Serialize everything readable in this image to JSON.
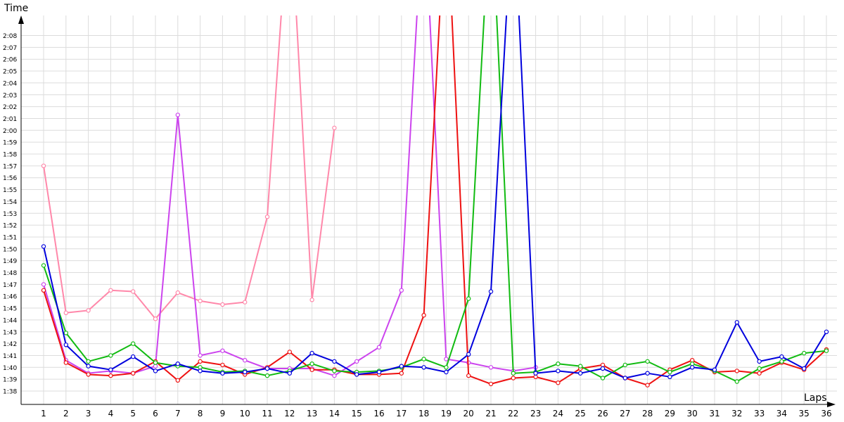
{
  "chart_data": {
    "type": "line",
    "title": "",
    "xlabel": "Laps",
    "ylabel": "Time",
    "xlim": [
      0,
      36.5
    ],
    "ylim": [
      97.5,
      130
    ],
    "grid": true,
    "x_ticks": [
      1,
      2,
      3,
      4,
      5,
      6,
      7,
      8,
      9,
      10,
      11,
      12,
      13,
      14,
      15,
      16,
      17,
      18,
      19,
      20,
      21,
      22,
      23,
      24,
      25,
      26,
      27,
      28,
      29,
      30,
      31,
      32,
      33,
      34,
      35,
      36
    ],
    "y_ticks": [
      {
        "v": 98,
        "label": "1:38"
      },
      {
        "v": 99,
        "label": "1:39"
      },
      {
        "v": 100,
        "label": "1:40"
      },
      {
        "v": 101,
        "label": "1:41"
      },
      {
        "v": 102,
        "label": "1:42"
      },
      {
        "v": 103,
        "label": "1:43"
      },
      {
        "v": 104,
        "label": "1:44"
      },
      {
        "v": 105,
        "label": "1:45"
      },
      {
        "v": 106,
        "label": "1:46"
      },
      {
        "v": 107,
        "label": "1:47"
      },
      {
        "v": 108,
        "label": "1:48"
      },
      {
        "v": 109,
        "label": "1:49"
      },
      {
        "v": 110,
        "label": "1:50"
      },
      {
        "v": 111,
        "label": "1:51"
      },
      {
        "v": 112,
        "label": "1:52"
      },
      {
        "v": 113,
        "label": "1:53"
      },
      {
        "v": 114,
        "label": "1:54"
      },
      {
        "v": 115,
        "label": "1:55"
      },
      {
        "v": 116,
        "label": "1:56"
      },
      {
        "v": 117,
        "label": "1:57"
      },
      {
        "v": 118,
        "label": "1:58"
      },
      {
        "v": 119,
        "label": "1:59"
      },
      {
        "v": 120,
        "label": "2:00"
      },
      {
        "v": 121,
        "label": "2:01"
      },
      {
        "v": 122,
        "label": "2:02"
      },
      {
        "v": 123,
        "label": "2:03"
      },
      {
        "v": 124,
        "label": "2:04"
      },
      {
        "v": 125,
        "label": "2:05"
      },
      {
        "v": 126,
        "label": "2:06"
      },
      {
        "v": 127,
        "label": "2:07"
      },
      {
        "v": 128,
        "label": "2:08"
      }
    ],
    "series": [
      {
        "color": "#ff88aa",
        "points": [
          [
            1,
            117.0
          ],
          [
            2,
            104.6
          ],
          [
            3,
            104.8
          ],
          [
            4,
            106.5
          ],
          [
            5,
            106.4
          ],
          [
            6,
            104.1
          ],
          [
            7,
            106.3
          ],
          [
            8,
            105.6
          ],
          [
            9,
            105.3
          ],
          [
            10,
            105.5
          ],
          [
            11,
            112.7
          ],
          [
            12,
            140
          ],
          [
            13,
            105.7
          ],
          [
            14,
            120.2
          ]
        ],
        "gaps_after": [
          14
        ]
      },
      {
        "color": "#cc44ee",
        "points": [
          [
            1,
            107.0
          ],
          [
            2,
            100.6
          ],
          [
            3,
            99.5
          ],
          [
            4,
            99.7
          ],
          [
            5,
            99.5
          ],
          [
            6,
            100.1
          ],
          [
            7,
            121.3
          ],
          [
            8,
            101.0
          ],
          [
            9,
            101.4
          ],
          [
            10,
            100.6
          ],
          [
            11,
            99.9
          ],
          [
            12,
            99.9
          ],
          [
            13,
            99.9
          ],
          [
            14,
            99.3
          ],
          [
            15,
            100.5
          ],
          [
            16,
            101.7
          ],
          [
            17,
            106.5
          ],
          [
            18,
            140
          ],
          [
            19,
            100.7
          ],
          [
            20,
            100.4
          ],
          [
            21,
            100.0
          ],
          [
            22,
            99.7
          ],
          [
            23,
            100.0
          ]
        ]
      },
      {
        "color": "#ee1111",
        "points": [
          [
            1,
            106.5
          ],
          [
            2,
            100.4
          ],
          [
            3,
            99.4
          ],
          [
            4,
            99.3
          ],
          [
            5,
            99.5
          ],
          [
            6,
            100.5
          ],
          [
            7,
            98.9
          ],
          [
            8,
            100.5
          ],
          [
            9,
            100.2
          ],
          [
            10,
            99.4
          ],
          [
            11,
            100.0
          ],
          [
            12,
            101.3
          ],
          [
            13,
            99.8
          ],
          [
            14,
            99.8
          ],
          [
            15,
            99.4
          ],
          [
            16,
            99.4
          ],
          [
            17,
            99.5
          ],
          [
            18,
            104.4
          ],
          [
            19,
            140
          ],
          [
            20,
            99.3
          ],
          [
            21,
            98.6
          ],
          [
            22,
            99.1
          ],
          [
            23,
            99.2
          ],
          [
            24,
            98.7
          ],
          [
            25,
            99.9
          ],
          [
            26,
            100.2
          ],
          [
            27,
            99.1
          ],
          [
            28,
            98.5
          ],
          [
            29,
            99.8
          ],
          [
            30,
            100.6
          ],
          [
            31,
            99.6
          ],
          [
            32,
            99.7
          ],
          [
            33,
            99.5
          ],
          [
            34,
            100.4
          ],
          [
            35,
            99.8
          ],
          [
            36,
            101.5
          ]
        ]
      },
      {
        "color": "#11bb11",
        "points": [
          [
            1,
            108.6
          ],
          [
            2,
            102.9
          ],
          [
            3,
            100.5
          ],
          [
            4,
            101.0
          ],
          [
            5,
            102.0
          ],
          [
            6,
            100.4
          ],
          [
            7,
            100.1
          ],
          [
            8,
            100.0
          ],
          [
            9,
            99.6
          ],
          [
            10,
            99.7
          ],
          [
            11,
            99.3
          ],
          [
            12,
            99.7
          ],
          [
            13,
            100.3
          ],
          [
            14,
            99.7
          ],
          [
            15,
            99.6
          ],
          [
            16,
            99.7
          ],
          [
            17,
            100.0
          ],
          [
            18,
            100.7
          ],
          [
            19,
            100.0
          ],
          [
            20,
            105.8
          ],
          [
            21,
            140
          ],
          [
            22,
            99.5
          ],
          [
            23,
            99.6
          ],
          [
            24,
            100.3
          ],
          [
            25,
            100.1
          ],
          [
            26,
            99.1
          ],
          [
            27,
            100.2
          ],
          [
            28,
            100.5
          ],
          [
            29,
            99.6
          ],
          [
            30,
            100.3
          ],
          [
            31,
            99.7
          ],
          [
            32,
            98.8
          ],
          [
            33,
            99.9
          ],
          [
            34,
            100.5
          ],
          [
            35,
            101.2
          ],
          [
            36,
            101.4
          ]
        ]
      },
      {
        "color": "#0000dd",
        "points": [
          [
            1,
            110.2
          ],
          [
            2,
            101.9
          ],
          [
            3,
            100.1
          ],
          [
            4,
            99.8
          ],
          [
            5,
            100.9
          ],
          [
            6,
            99.7
          ],
          [
            7,
            100.3
          ],
          [
            8,
            99.7
          ],
          [
            9,
            99.5
          ],
          [
            10,
            99.6
          ],
          [
            11,
            99.9
          ],
          [
            12,
            99.5
          ],
          [
            13,
            101.2
          ],
          [
            14,
            100.5
          ],
          [
            15,
            99.4
          ],
          [
            16,
            99.6
          ],
          [
            17,
            100.1
          ],
          [
            18,
            100.0
          ],
          [
            19,
            99.6
          ],
          [
            20,
            101.1
          ],
          [
            21,
            106.4
          ],
          [
            22,
            140
          ],
          [
            23,
            99.5
          ],
          [
            24,
            99.7
          ],
          [
            25,
            99.5
          ],
          [
            26,
            99.9
          ],
          [
            27,
            99.1
          ],
          [
            28,
            99.5
          ],
          [
            29,
            99.2
          ],
          [
            30,
            100.0
          ],
          [
            31,
            99.8
          ],
          [
            32,
            103.8
          ],
          [
            33,
            100.5
          ],
          [
            34,
            100.9
          ],
          [
            35,
            99.9
          ],
          [
            36,
            103.0
          ]
        ]
      }
    ]
  }
}
